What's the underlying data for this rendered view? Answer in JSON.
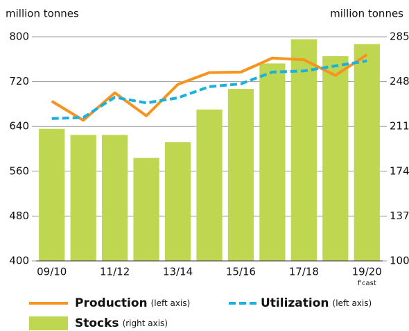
{
  "chart_data": {
    "type": "bar_line",
    "y_label": "million tonnes",
    "y2_label": "million tonnes",
    "categories": [
      "09/10",
      null,
      "11/12",
      null,
      "13/14",
      null,
      "15/16",
      null,
      "17/18",
      null,
      "19/20"
    ],
    "annotations": [
      "f'cast"
    ],
    "ylim": [
      400,
      800
    ],
    "yticks": [
      400,
      480,
      560,
      640,
      720,
      800
    ],
    "y2lim": [
      100,
      285
    ],
    "y2ticks": [
      100,
      137,
      174,
      211,
      248,
      285
    ],
    "grid": true,
    "series": [
      {
        "name": "Production",
        "legend_note": "(left axis)",
        "type": "line",
        "color": "#f7941d",
        "values": [
          685,
          651,
          700,
          659,
          715,
          736,
          737,
          762,
          759,
          731,
          768
        ]
      },
      {
        "name": "Utilization",
        "legend_note": "(left axis)",
        "type": "dashed_line",
        "color": "#1ab0e0",
        "values": [
          654,
          656,
          692,
          682,
          691,
          711,
          716,
          737,
          739,
          748,
          757
        ]
      },
      {
        "name": "Stocks",
        "legend_note": "(right axis)",
        "type": "bar",
        "axis": "y2",
        "color": "#bfd650",
        "values": [
          209,
          204,
          204,
          185,
          198,
          225,
          242,
          263,
          283,
          269,
          279
        ]
      }
    ]
  }
}
